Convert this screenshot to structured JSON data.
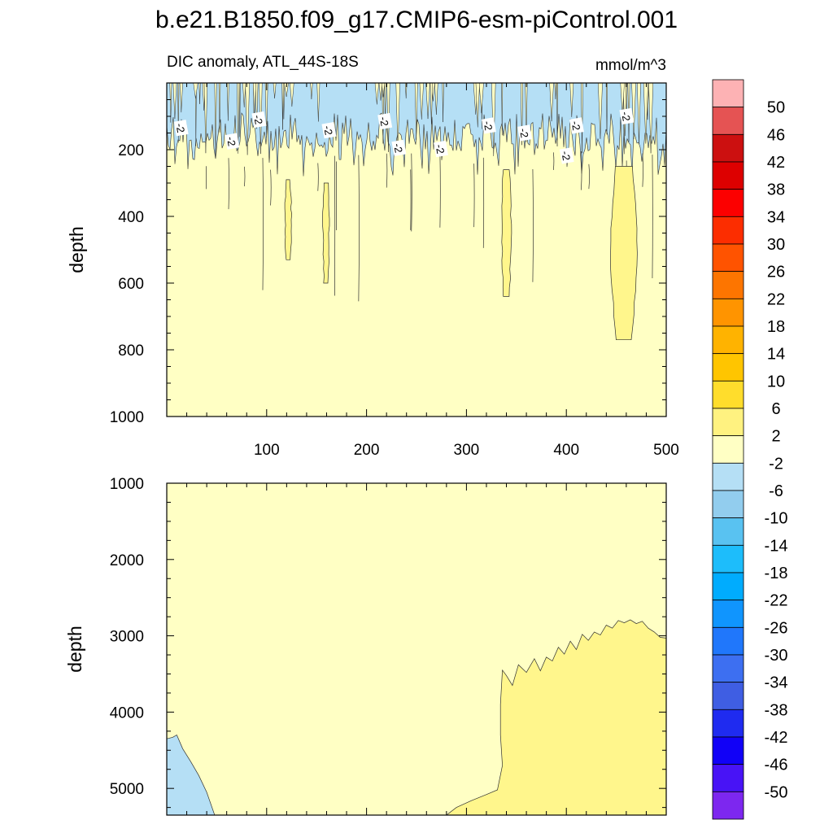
{
  "chart_data": [
    {
      "type": "heatmap",
      "title": "b.e21.B1850.f09_g17.CMIP6-esm-piControl.001",
      "subtitle": "DIC anomaly, ATL_44S-18S",
      "units": "mmol/m^3",
      "xlabel": "",
      "ylabel": "depth",
      "xlim": [
        0,
        500
      ],
      "ylim": [
        1000,
        0
      ],
      "x_ticks": [
        100,
        200,
        300,
        400,
        500
      ],
      "y_ticks": [
        200,
        400,
        600,
        800,
        1000
      ],
      "contour_label": "-2",
      "background_level": "-2 to 2",
      "regions": [
        {
          "level": "-6 to -2",
          "x": [
            0,
            500
          ],
          "depth": [
            0,
            280
          ],
          "note": "streaky negative anomaly near surface"
        },
        {
          "level": "2 to 6",
          "x": [
            445,
            470
          ],
          "depth": [
            250,
            770
          ]
        },
        {
          "level": "2 to 6",
          "x": [
            336,
            344
          ],
          "depth": [
            260,
            640
          ]
        },
        {
          "level": "2 to 6",
          "x": [
            119,
            124
          ],
          "depth": [
            290,
            530
          ]
        },
        {
          "level": "2 to 6",
          "x": [
            157,
            162
          ],
          "depth": [
            300,
            600
          ]
        }
      ]
    },
    {
      "type": "heatmap",
      "ylabel": "depth",
      "xlim": [
        0,
        500
      ],
      "ylim": [
        5350,
        1000
      ],
      "y_ticks": [
        1000,
        2000,
        3000,
        4000,
        5000
      ],
      "background_level": "-2 to 2",
      "regions": [
        {
          "level": "2 to 6",
          "x": [
            335,
            500
          ],
          "depth": [
            2780,
            5350
          ],
          "note": "deep positive anomaly, eastern side"
        },
        {
          "level": "-6 to -2",
          "x": [
            0,
            48
          ],
          "depth": [
            4300,
            5350
          ],
          "note": "deep negative anomaly, western edge"
        }
      ]
    }
  ],
  "colorbar": {
    "labels": [
      "50",
      "46",
      "42",
      "38",
      "34",
      "30",
      "26",
      "22",
      "18",
      "14",
      "10",
      "6",
      "2",
      "-2",
      "-6",
      "-10",
      "-14",
      "-18",
      "-22",
      "-26",
      "-30",
      "-34",
      "-38",
      "-42",
      "-46",
      "-50"
    ],
    "colors": [
      "#fdb2b4",
      "#e55353",
      "#cc1010",
      "#dd0000",
      "#fc0000",
      "#fc2d00",
      "#ff5300",
      "#fd7500",
      "#ff9400",
      "#ffb300",
      "#ffc500",
      "#ffdd2c",
      "#fff280",
      "#ffffc4",
      "#b5dff5",
      "#92cdee",
      "#59c2f1",
      "#1dbdfb",
      "#00acfe",
      "#1095fe",
      "#2077fb",
      "#3d6ff1",
      "#3f5ee3",
      "#1f2bf0",
      "#1101f7",
      "#4813f6",
      "#7d27ef"
    ]
  },
  "colors": {
    "frame": "#000000",
    "contour": "#303030"
  }
}
